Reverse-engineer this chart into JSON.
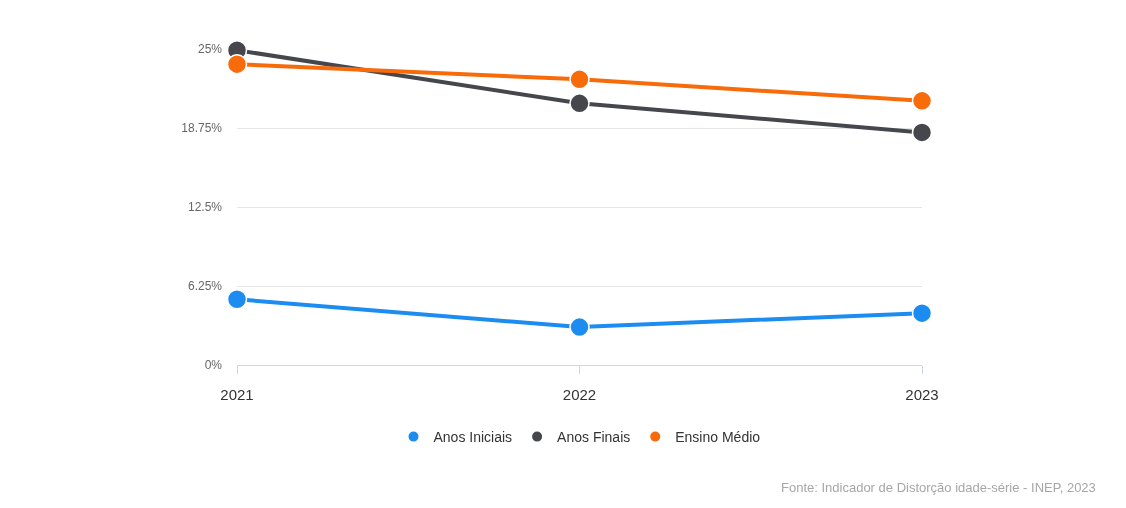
{
  "chart_data": {
    "type": "line",
    "categories": [
      "2021",
      "2022",
      "2023"
    ],
    "series": [
      {
        "name": "Anos Iniciais",
        "color": "#1c8cf0",
        "values": [
          5.2,
          3.0,
          4.1
        ]
      },
      {
        "name": "Anos Finais",
        "color": "#45474d",
        "values": [
          24.9,
          20.7,
          18.4
        ]
      },
      {
        "name": "Ensino Médio",
        "color": "#f76b0a",
        "values": [
          23.8,
          22.6,
          20.9
        ]
      }
    ],
    "ylim": [
      0,
      25
    ],
    "yticks": [
      {
        "value": 0,
        "label": "0%"
      },
      {
        "value": 6.25,
        "label": "6.25%"
      },
      {
        "value": 12.5,
        "label": "12.5%"
      },
      {
        "value": 18.75,
        "label": "18.75%"
      },
      {
        "value": 25,
        "label": "25%"
      }
    ],
    "grid": "y",
    "legend": "bottom",
    "marker": "circle",
    "line_style": "solid",
    "annotations": [
      "Fonte: Indicador de Distorção idade-série - INEP, 2023"
    ]
  }
}
